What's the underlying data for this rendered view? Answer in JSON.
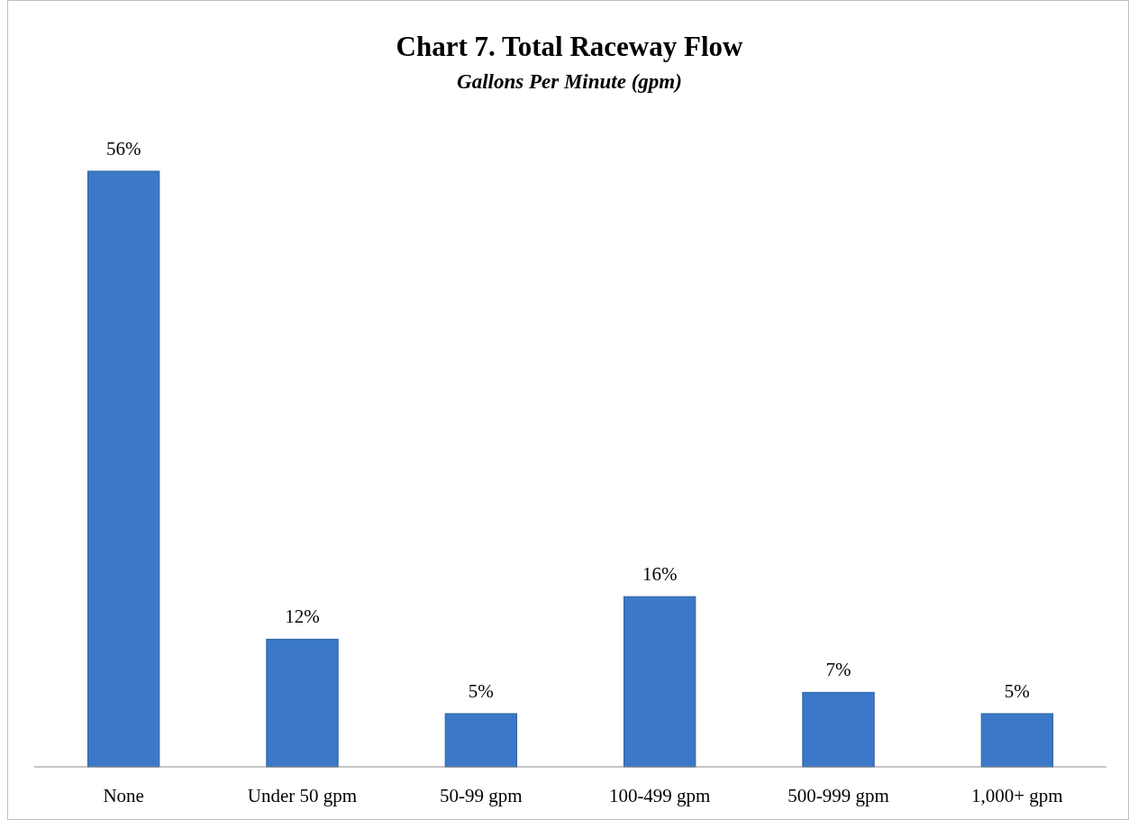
{
  "chart_data": {
    "type": "bar",
    "title": "Chart 7. Total Raceway Flow",
    "subtitle": "Gallons Per Minute (gpm)",
    "categories": [
      "None",
      "Under 50 gpm",
      "50-99 gpm",
      "100-499 gpm",
      "500-999 gpm",
      "1,000+ gpm"
    ],
    "values": [
      56,
      12,
      5,
      16,
      7,
      5
    ],
    "color": "#3b78c8",
    "tick_labels": "x",
    "value_labels": [
      "56%",
      "12%",
      "5%",
      "16%",
      "7%",
      "5%"
    ]
  }
}
